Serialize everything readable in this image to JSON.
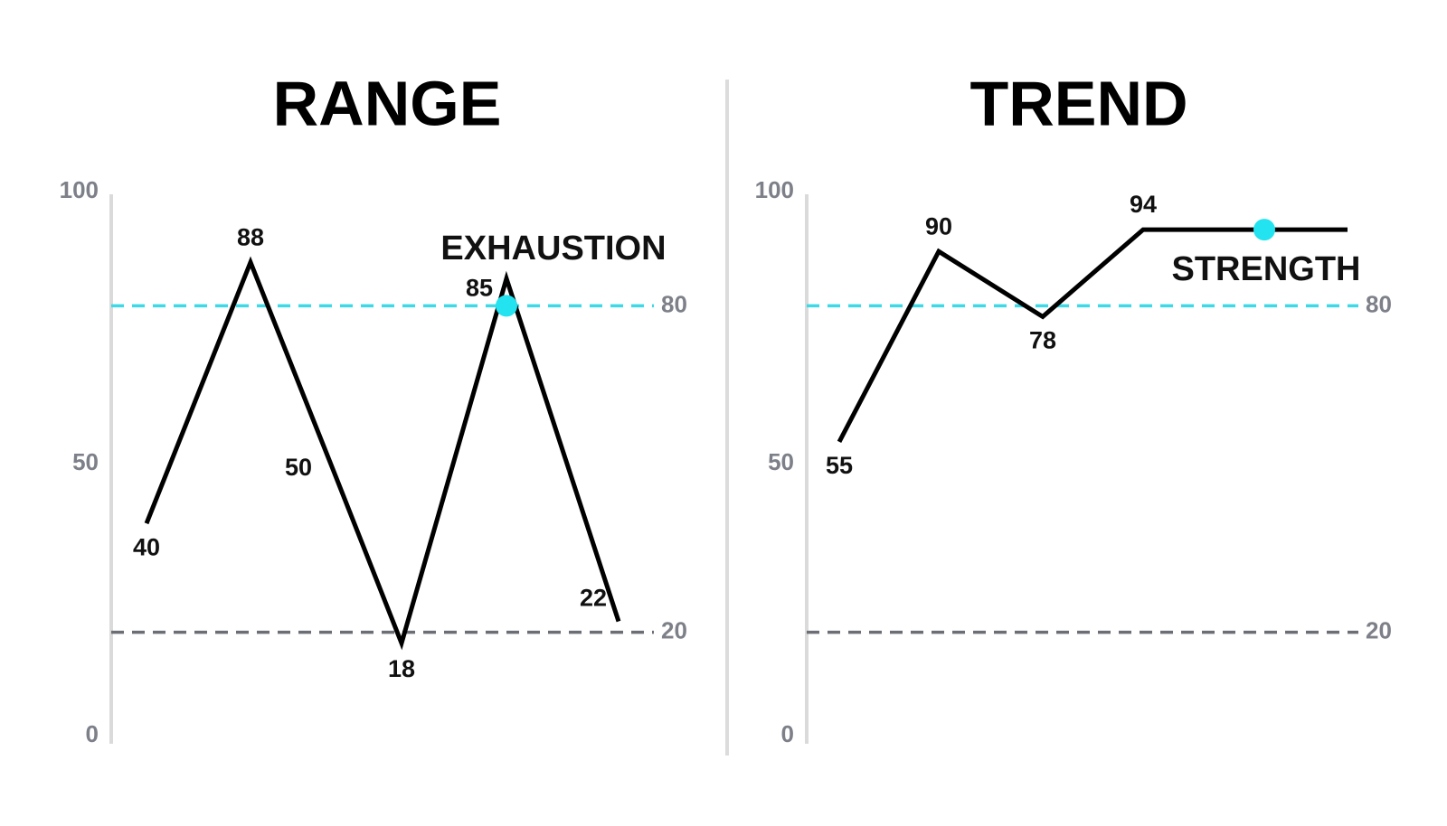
{
  "chart_data": [
    {
      "type": "line",
      "title": "RANGE",
      "categories": [
        null,
        null,
        null,
        null,
        null,
        null
      ],
      "values": [
        40,
        88,
        50,
        18,
        85,
        22
      ],
      "color": "#000000",
      "ylim": [
        0,
        100
      ],
      "yticks": [
        0,
        50,
        100
      ],
      "thresholds": [
        {
          "value": 20,
          "color": "#6b6e75"
        },
        {
          "value": 80,
          "color": "#3dd9e6"
        }
      ],
      "annotation": "EXHAUSTION",
      "marker_color": "#22e3ef"
    },
    {
      "type": "line",
      "title": "TREND",
      "categories": [
        null,
        null,
        null,
        null,
        null
      ],
      "values": [
        55,
        90,
        78,
        94,
        94
      ],
      "value_labels": [
        "55",
        "90",
        "78",
        "94",
        null
      ],
      "color": "#000000",
      "ylim": [
        0,
        100
      ],
      "yticks": [
        0,
        50,
        100
      ],
      "thresholds": [
        {
          "value": 20,
          "color": "#6b6e75"
        },
        {
          "value": 80,
          "color": "#3dd9e6"
        }
      ],
      "annotation": "STRENGTH",
      "marker_color": "#22e3ef"
    }
  ]
}
